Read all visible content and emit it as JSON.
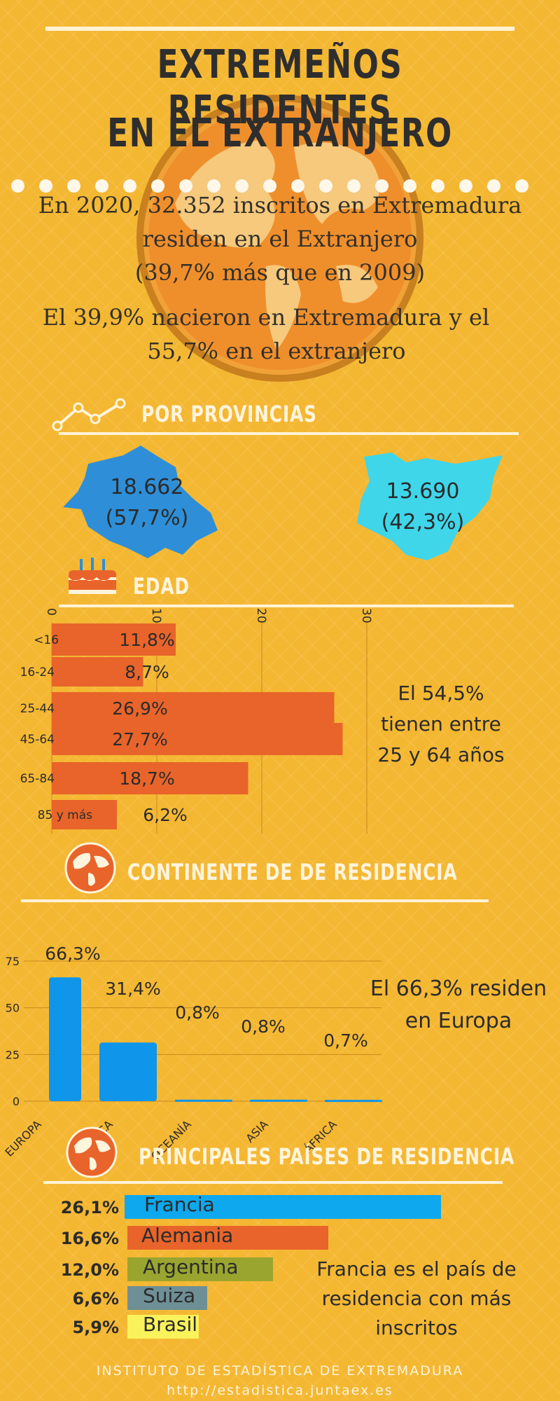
{
  "header": {
    "title_line1": "EXTREMEÑOS RESIDENTES",
    "title_line2": "EN EL EXTRANJERO"
  },
  "intro": {
    "line1": "En 2020, 32.352  inscritos en Extremadura",
    "line2": "residen en el Extranjero",
    "line3": "(39,7% más que en 2009)",
    "line4": "El 39,9% nacieron en Extremadura  y el",
    "line5": "55,7% en el extranjero"
  },
  "sections": {
    "provincias": "POR PROVINCIAS",
    "edad": "EDAD",
    "continente": "CONTINENTE DE DE RESIDENCIA",
    "paises": "PRINCIPALES PAÍSES DE RESIDENCIA"
  },
  "provincias": {
    "badajoz_value": "18.662",
    "badajoz_pct": "(57,7%)",
    "caceres_value": "13.690",
    "caceres_pct": "(42,3%)",
    "colors": {
      "badajoz": "#2e8fd8",
      "caceres": "#3fd6ea"
    }
  },
  "edad_note": {
    "line1": "El 54,5%",
    "line2": "tienen entre",
    "line3": "25 y 64 años"
  },
  "continente_note": {
    "line1": "El 66,3% residen",
    "line2": "en Europa"
  },
  "paises_note": {
    "line1": "Francia es el país de",
    "line2": "residencia con más",
    "line3": "inscritos"
  },
  "footer": {
    "line1": "INSTITUTO DE ESTADÍSTICA DE EXTREMADURA",
    "line2": "http://estadistica.juntaex.es"
  },
  "chart_data": [
    {
      "type": "bar",
      "orientation": "horizontal",
      "categories": [
        "<16",
        "16-24",
        "25-44",
        "45-64",
        "65-84",
        "85 y más"
      ],
      "values": [
        11.8,
        8.7,
        26.9,
        27.7,
        18.7,
        6.2
      ],
      "labels": [
        "11,8%",
        "8,7%",
        "26,9%",
        "27,7%",
        "18,7%",
        "6,2%"
      ],
      "ticks": [
        "0",
        "10",
        "20",
        "30"
      ],
      "xlim": [
        0,
        30
      ],
      "color": "#e8642a",
      "grid": true
    },
    {
      "type": "bar",
      "categories": [
        "EUROPA",
        "AMÉRICA",
        "OCEANÍA",
        "ASIA",
        "ÁFRICA"
      ],
      "values": [
        66.3,
        31.4,
        0.8,
        0.8,
        0.7
      ],
      "labels": [
        "66,3%",
        "31,4%",
        "0,8%",
        "0,8%",
        "0,7%"
      ],
      "ticks": [
        "0",
        "25",
        "50",
        "75"
      ],
      "ylim": [
        0,
        75
      ],
      "color": "#0f95ea",
      "grid": true
    },
    {
      "type": "bar",
      "orientation": "horizontal",
      "categories": [
        "Francia",
        "Alemania",
        "Argentina",
        "Suiza",
        "Brasil"
      ],
      "values": [
        26.1,
        16.6,
        12.0,
        6.6,
        5.9
      ],
      "labels": [
        "26,1%",
        "16,6%",
        "12,0%",
        "6,6%",
        "5,9%"
      ],
      "colors": [
        "#0ea8ee",
        "#e8642a",
        "#9aa52f",
        "#6f8f96",
        "#faf25a"
      ]
    }
  ]
}
